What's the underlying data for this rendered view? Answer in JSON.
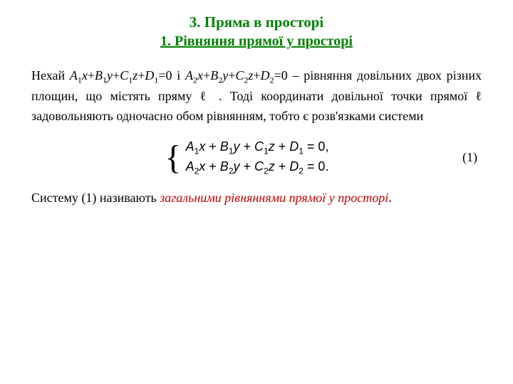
{
  "title_main": "3. Пряма  в  просторі",
  "title_sub": "1. Рівняння  прямої  у  просторі",
  "p1_lead": "Нехай   ",
  "p1_mid": "   і   ",
  "p1_tail1": " – рівняння довільних двох різних площин, що містять пряму ",
  "p1_tail2": " .  Тоді координати довільної точки прямої ",
  "p1_tail3": " задовольняють одночасно обом рівнянням,  тобто є розв'язками  системи",
  "eq_a": "A",
  "eq_b": "B",
  "eq_c": "C",
  "eq_d": "D",
  "eq_x": "x",
  "eq_y": "y",
  "eq_z": "z",
  "eq_plus": " + ",
  "eq_eq0": " = 0",
  "eq_comma": ",",
  "eq_dot": ".",
  "eq_num": "(1)",
  "p2_a": "Систему  (1)  називають ",
  "p2_b": "загальними рівняннями прямої  у просторі",
  "p2_c": ".",
  "ell": "ℓ",
  "s1": "1",
  "s2": "2",
  "zero": "=0",
  "colors": {
    "green": "#008000",
    "red": "#c00000",
    "black": "#000000"
  }
}
